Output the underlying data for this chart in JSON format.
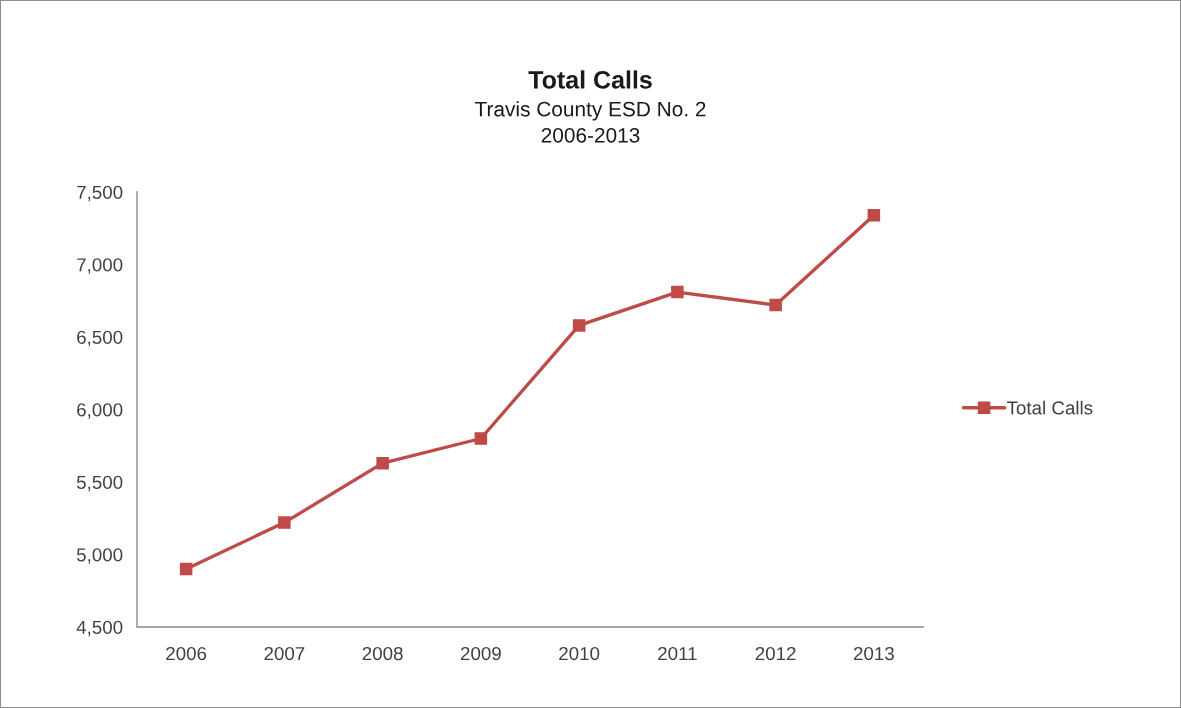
{
  "chart_data": {
    "type": "line",
    "title": "Total Calls",
    "subtitle": "Travis County ESD No. 2\n2006-2013",
    "categories": [
      "2006",
      "2007",
      "2008",
      "2009",
      "2010",
      "2011",
      "2012",
      "2013"
    ],
    "series": [
      {
        "name": "Total Calls",
        "color": "#be4b48",
        "values": [
          4900,
          5220,
          5630,
          5800,
          6580,
          6810,
          6720,
          7340
        ]
      }
    ],
    "ylim": [
      4500,
      7500
    ],
    "yticks": [
      {
        "value": 4500,
        "label": "4,500"
      },
      {
        "value": 5000,
        "label": "5,000"
      },
      {
        "value": 5500,
        "label": "5,500"
      },
      {
        "value": 6000,
        "label": "6,000"
      },
      {
        "value": 6500,
        "label": "6,500"
      },
      {
        "value": 7000,
        "label": "7,000"
      },
      {
        "value": 7500,
        "label": "7,500"
      }
    ],
    "grid": false,
    "legend": "right",
    "marker": "square",
    "line_style": "solid"
  }
}
